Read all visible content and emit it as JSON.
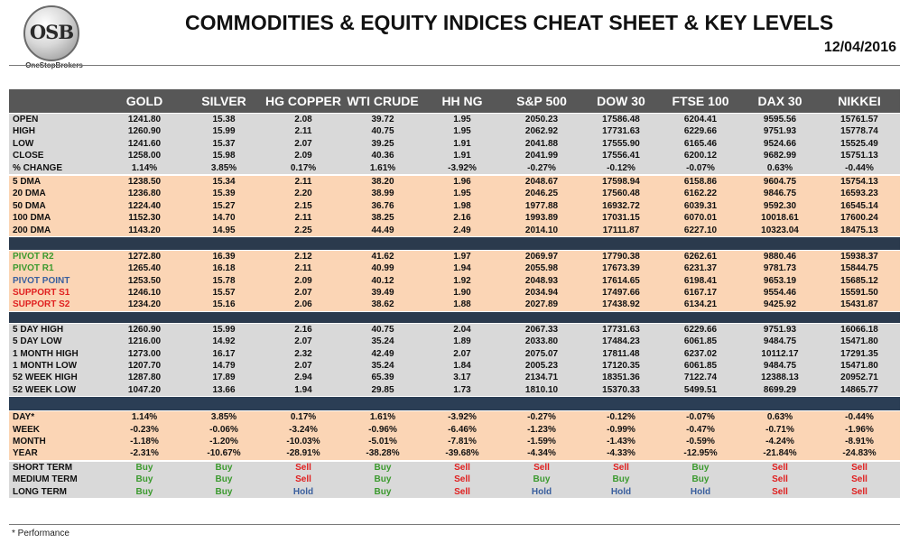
{
  "logo": {
    "text": "OSB",
    "subtext": "OneStopBrokers"
  },
  "title": "COMMODITIES & EQUITY INDICES CHEAT SHEET & KEY LEVELS",
  "date": "12/04/2016",
  "footnote": "* Performance",
  "columns": [
    "GOLD",
    "SILVER",
    "HG COPPER",
    "WTI CRUDE",
    "HH NG",
    "S&P 500",
    "DOW 30",
    "FTSE 100",
    "DAX 30",
    "NIKKEI"
  ],
  "sections": [
    {
      "bg": "grey",
      "rows": [
        {
          "label": "OPEN",
          "values": [
            "1241.80",
            "15.38",
            "2.08",
            "39.72",
            "1.95",
            "2050.23",
            "17586.48",
            "6204.41",
            "9595.56",
            "15761.57"
          ]
        },
        {
          "label": "HIGH",
          "values": [
            "1260.90",
            "15.99",
            "2.11",
            "40.75",
            "1.95",
            "2062.92",
            "17731.63",
            "6229.66",
            "9751.93",
            "15778.74"
          ]
        },
        {
          "label": "LOW",
          "values": [
            "1241.60",
            "15.37",
            "2.07",
            "39.25",
            "1.91",
            "2041.88",
            "17555.90",
            "6165.46",
            "9524.66",
            "15525.49"
          ]
        },
        {
          "label": "CLOSE",
          "values": [
            "1258.00",
            "15.98",
            "2.09",
            "40.36",
            "1.91",
            "2041.99",
            "17556.41",
            "6200.12",
            "9682.99",
            "15751.13"
          ]
        },
        {
          "label": "% CHANGE",
          "values": [
            "1.14%",
            "3.85%",
            "0.17%",
            "1.61%",
            "-3.92%",
            "-0.27%",
            "-0.12%",
            "-0.07%",
            "0.63%",
            "-0.44%"
          ]
        }
      ]
    },
    {
      "bg": "peach",
      "rows": [
        {
          "label": "5 DMA",
          "values": [
            "1238.50",
            "15.34",
            "2.11",
            "38.20",
            "1.96",
            "2048.67",
            "17598.94",
            "6158.86",
            "9604.75",
            "15754.13"
          ]
        },
        {
          "label": "20 DMA",
          "values": [
            "1236.80",
            "15.39",
            "2.20",
            "38.99",
            "1.95",
            "2046.25",
            "17560.48",
            "6162.22",
            "9846.75",
            "16593.23"
          ]
        },
        {
          "label": "50 DMA",
          "values": [
            "1224.40",
            "15.27",
            "2.15",
            "36.76",
            "1.98",
            "1977.88",
            "16932.72",
            "6039.31",
            "9592.30",
            "16545.14"
          ]
        },
        {
          "label": "100 DMA",
          "values": [
            "1152.30",
            "14.70",
            "2.11",
            "38.25",
            "2.16",
            "1993.89",
            "17031.15",
            "6070.01",
            "10018.61",
            "17600.24"
          ]
        },
        {
          "label": "200 DMA",
          "values": [
            "1143.20",
            "14.95",
            "2.25",
            "44.49",
            "2.49",
            "2014.10",
            "17111.87",
            "6227.10",
            "10323.04",
            "18475.13"
          ]
        }
      ]
    },
    {
      "bg": "peach",
      "sep": "tall",
      "rows": [
        {
          "label": "PIVOT R2",
          "color": "green",
          "values": [
            "1272.80",
            "16.39",
            "2.12",
            "41.62",
            "1.97",
            "2069.97",
            "17790.38",
            "6262.61",
            "9880.46",
            "15938.37"
          ]
        },
        {
          "label": "PIVOT R1",
          "color": "green",
          "values": [
            "1265.40",
            "16.18",
            "2.11",
            "40.99",
            "1.94",
            "2055.98",
            "17673.39",
            "6231.37",
            "9781.73",
            "15844.75"
          ]
        },
        {
          "label": "PIVOT POINT",
          "color": "blue",
          "values": [
            "1253.50",
            "15.78",
            "2.09",
            "40.12",
            "1.92",
            "2048.93",
            "17614.65",
            "6198.41",
            "9653.19",
            "15685.12"
          ]
        },
        {
          "label": "SUPPORT S1",
          "color": "red",
          "values": [
            "1246.10",
            "15.57",
            "2.07",
            "39.49",
            "1.90",
            "2034.94",
            "17497.66",
            "6167.17",
            "9554.46",
            "15591.50"
          ]
        },
        {
          "label": "SUPPORT S2",
          "color": "red",
          "values": [
            "1234.20",
            "15.16",
            "2.06",
            "38.62",
            "1.88",
            "2027.89",
            "17438.92",
            "6134.21",
            "9425.92",
            "15431.87"
          ]
        }
      ]
    },
    {
      "bg": "grey",
      "sep": "normal",
      "rows": [
        {
          "label": "5 DAY HIGH",
          "values": [
            "1260.90",
            "15.99",
            "2.16",
            "40.75",
            "2.04",
            "2067.33",
            "17731.63",
            "6229.66",
            "9751.93",
            "16066.18"
          ]
        },
        {
          "label": "5 DAY LOW",
          "values": [
            "1216.00",
            "14.92",
            "2.07",
            "35.24",
            "1.89",
            "2033.80",
            "17484.23",
            "6061.85",
            "9484.75",
            "15471.80"
          ]
        },
        {
          "label": "1 MONTH HIGH",
          "values": [
            "1273.00",
            "16.17",
            "2.32",
            "42.49",
            "2.07",
            "2075.07",
            "17811.48",
            "6237.02",
            "10112.17",
            "17291.35"
          ]
        },
        {
          "label": "1 MONTH LOW",
          "values": [
            "1207.70",
            "14.79",
            "2.07",
            "35.24",
            "1.84",
            "2005.23",
            "17120.35",
            "6061.85",
            "9484.75",
            "15471.80"
          ]
        },
        {
          "label": "52 WEEK HIGH",
          "values": [
            "1287.80",
            "17.89",
            "2.94",
            "65.39",
            "3.17",
            "2134.71",
            "18351.36",
            "7122.74",
            "12388.13",
            "20952.71"
          ]
        },
        {
          "label": "52 WEEK LOW",
          "values": [
            "1047.20",
            "13.66",
            "1.94",
            "29.85",
            "1.73",
            "1810.10",
            "15370.33",
            "5499.51",
            "8699.29",
            "14865.77"
          ]
        }
      ]
    },
    {
      "bg": "peach",
      "sep": "tallx",
      "rows": [
        {
          "label": "DAY*",
          "values": [
            "1.14%",
            "3.85%",
            "0.17%",
            "1.61%",
            "-3.92%",
            "-0.27%",
            "-0.12%",
            "-0.07%",
            "0.63%",
            "-0.44%"
          ]
        },
        {
          "label": "WEEK",
          "values": [
            "-0.23%",
            "-0.06%",
            "-3.24%",
            "-0.96%",
            "-6.46%",
            "-1.23%",
            "-0.99%",
            "-0.47%",
            "-0.71%",
            "-1.96%"
          ]
        },
        {
          "label": "MONTH",
          "values": [
            "-1.18%",
            "-1.20%",
            "-10.03%",
            "-5.01%",
            "-7.81%",
            "-1.59%",
            "-1.43%",
            "-0.59%",
            "-4.24%",
            "-8.91%"
          ]
        },
        {
          "label": "YEAR",
          "values": [
            "-2.31%",
            "-10.67%",
            "-28.91%",
            "-38.28%",
            "-39.68%",
            "-4.34%",
            "-4.33%",
            "-12.95%",
            "-21.84%",
            "-24.83%"
          ]
        }
      ]
    },
    {
      "bg": "grey",
      "rows": [
        {
          "label": "SHORT TERM",
          "values": [
            "Buy",
            "Buy",
            "Sell",
            "Buy",
            "Sell",
            "Sell",
            "Sell",
            "Buy",
            "Sell",
            "Sell"
          ]
        },
        {
          "label": "MEDIUM TERM",
          "values": [
            "Buy",
            "Buy",
            "Sell",
            "Buy",
            "Sell",
            "Buy",
            "Buy",
            "Buy",
            "Sell",
            "Sell"
          ]
        },
        {
          "label": "LONG TERM",
          "values": [
            "Buy",
            "Buy",
            "Hold",
            "Buy",
            "Sell",
            "Hold",
            "Hold",
            "Hold",
            "Sell",
            "Sell"
          ]
        }
      ]
    }
  ],
  "signal_colors": {
    "Buy": "#3b9a2e",
    "Sell": "#e02020",
    "Hold": "#3a5f9e"
  }
}
